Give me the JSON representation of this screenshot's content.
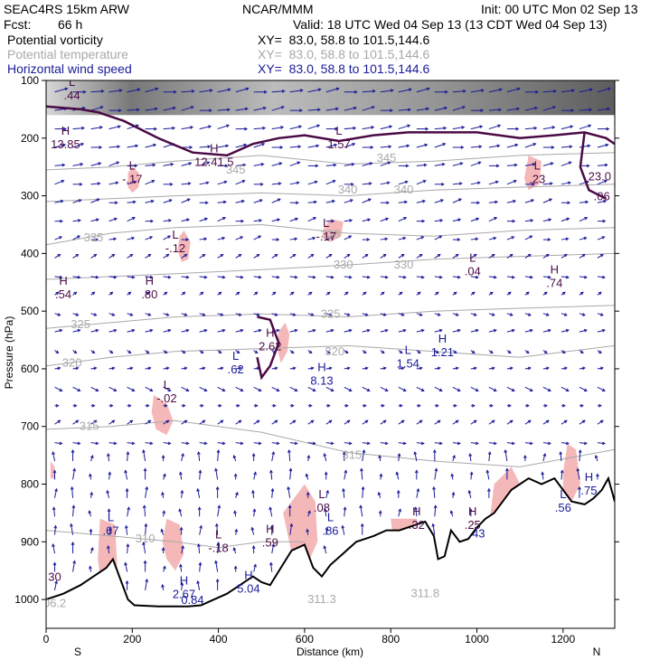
{
  "header": {
    "model": "SEAC4RS 15km ARW",
    "org": "NCAR/MMM",
    "init": "Init: 00 UTC Mon 02 Sep 13",
    "fcst_label": "Fcst:",
    "fcst_value": "66 h",
    "valid": "Valid: 18 UTC Wed 04 Sep 13 (13 CDT Wed 04 Sep 13)",
    "fields": [
      {
        "name": "Potential vorticity",
        "xy": "XY=  83.0, 58.8 to 101.5,144.6"
      },
      {
        "name": "Potential temperature",
        "xy": "XY=  83.0, 58.8 to 101.5,144.6"
      },
      {
        "name": "Horizontal wind speed",
        "xy": "XY=  83.0, 58.8 to 101.5,144.6"
      }
    ]
  },
  "colors": {
    "vorticity": "#4b0a46",
    "temperature": "#a9a9a9",
    "wind": "#1a1a9a",
    "pv_fill": "#f5b8b8",
    "terrain": "#000000"
  },
  "chart_data": {
    "type": "cross-section",
    "xlabel": "Distance (km)",
    "ylabel": "Pressure (hPa)",
    "xlim": [
      0,
      1320
    ],
    "ylim": [
      1050,
      100
    ],
    "x_ticks": [
      0,
      200,
      400,
      600,
      800,
      1000,
      1200
    ],
    "y_ticks": [
      100,
      200,
      300,
      400,
      500,
      600,
      700,
      800,
      900,
      1000
    ],
    "x_end_labels": {
      "left": "S",
      "right": "N"
    },
    "terrain": [
      [
        0,
        1000
      ],
      [
        40,
        990
      ],
      [
        80,
        975
      ],
      [
        110,
        960
      ],
      [
        140,
        945
      ],
      [
        155,
        930
      ],
      [
        170,
        960
      ],
      [
        190,
        1000
      ],
      [
        205,
        1010
      ],
      [
        260,
        1012
      ],
      [
        300,
        1012
      ],
      [
        330,
        1012
      ],
      [
        360,
        1010
      ],
      [
        390,
        1000
      ],
      [
        420,
        990
      ],
      [
        450,
        975
      ],
      [
        480,
        960
      ],
      [
        500,
        970
      ],
      [
        520,
        975
      ],
      [
        545,
        945
      ],
      [
        570,
        915
      ],
      [
        600,
        905
      ],
      [
        620,
        945
      ],
      [
        640,
        960
      ],
      [
        660,
        940
      ],
      [
        690,
        920
      ],
      [
        720,
        900
      ],
      [
        760,
        890
      ],
      [
        790,
        880
      ],
      [
        820,
        880
      ],
      [
        860,
        870
      ],
      [
        880,
        865
      ],
      [
        900,
        890
      ],
      [
        910,
        930
      ],
      [
        925,
        925
      ],
      [
        940,
        880
      ],
      [
        960,
        900
      ],
      [
        980,
        895
      ],
      [
        1000,
        875
      ],
      [
        1020,
        860
      ],
      [
        1040,
        850
      ],
      [
        1060,
        830
      ],
      [
        1080,
        810
      ],
      [
        1100,
        800
      ],
      [
        1120,
        790
      ],
      [
        1150,
        800
      ],
      [
        1180,
        790
      ],
      [
        1200,
        810
      ],
      [
        1220,
        830
      ],
      [
        1250,
        835
      ],
      [
        1270,
        825
      ],
      [
        1290,
        810
      ],
      [
        1305,
        790
      ],
      [
        1320,
        830
      ]
    ],
    "theta_contours": [
      {
        "label": "345",
        "points": [
          [
            0,
            255
          ],
          [
            150,
            250
          ],
          [
            300,
            240
          ],
          [
            500,
            230
          ],
          [
            700,
            245
          ],
          [
            900,
            240
          ],
          [
            1100,
            230
          ],
          [
            1320,
            225
          ]
        ]
      },
      {
        "label": "340",
        "points": [
          [
            0,
            310
          ],
          [
            150,
            305
          ],
          [
            300,
            300
          ],
          [
            500,
            295
          ],
          [
            700,
            300
          ],
          [
            900,
            290
          ],
          [
            1100,
            285
          ],
          [
            1320,
            280
          ]
        ]
      },
      {
        "label": "335",
        "points": [
          [
            0,
            385
          ],
          [
            150,
            365
          ],
          [
            300,
            355
          ],
          [
            500,
            350
          ],
          [
            700,
            365
          ],
          [
            900,
            370
          ],
          [
            1100,
            360
          ],
          [
            1320,
            355
          ]
        ]
      },
      {
        "label": "330",
        "points": [
          [
            0,
            445
          ],
          [
            150,
            440
          ],
          [
            300,
            435
          ],
          [
            500,
            428
          ],
          [
            700,
            420
          ],
          [
            900,
            410
          ],
          [
            1100,
            405
          ],
          [
            1320,
            400
          ]
        ]
      },
      {
        "label": "325",
        "points": [
          [
            0,
            530
          ],
          [
            150,
            520
          ],
          [
            300,
            510
          ],
          [
            500,
            505
          ],
          [
            700,
            510
          ],
          [
            900,
            500
          ],
          [
            1100,
            495
          ],
          [
            1320,
            490
          ]
        ]
      },
      {
        "label": "320",
        "points": [
          [
            0,
            595
          ],
          [
            150,
            580
          ],
          [
            300,
            570
          ],
          [
            500,
            565
          ],
          [
            700,
            560
          ],
          [
            900,
            570
          ],
          [
            1100,
            580
          ],
          [
            1320,
            560
          ]
        ]
      },
      {
        "label": "315",
        "points": [
          [
            0,
            705
          ],
          [
            150,
            700
          ],
          [
            300,
            690
          ],
          [
            500,
            710
          ],
          [
            700,
            745
          ],
          [
            900,
            760
          ],
          [
            1100,
            770
          ],
          [
            1320,
            740
          ]
        ]
      },
      {
        "label": "310",
        "points": [
          [
            0,
            880
          ],
          [
            150,
            890
          ],
          [
            300,
            900
          ],
          [
            400,
            910
          ],
          [
            500,
            900
          ],
          [
            600,
            900
          ]
        ]
      }
    ],
    "theta_labels": [
      {
        "text": "345",
        "x": 440,
        "y": 255
      },
      {
        "text": "345",
        "x": 790,
        "y": 235
      },
      {
        "text": "340",
        "x": 700,
        "y": 290
      },
      {
        "text": "340",
        "x": 830,
        "y": 290
      },
      {
        "text": "335",
        "x": 110,
        "y": 373
      },
      {
        "text": "335",
        "x": 660,
        "y": 367
      },
      {
        "text": "330",
        "x": 690,
        "y": 420
      },
      {
        "text": "330",
        "x": 830,
        "y": 420
      },
      {
        "text": "325",
        "x": 80,
        "y": 523
      },
      {
        "text": "325",
        "x": 660,
        "y": 505
      },
      {
        "text": "320",
        "x": 60,
        "y": 590
      },
      {
        "text": "320",
        "x": 670,
        "y": 570
      },
      {
        "text": "315",
        "x": 100,
        "y": 700
      },
      {
        "text": "315",
        "x": 710,
        "y": 750
      },
      {
        "text": "310",
        "x": 230,
        "y": 895
      },
      {
        "text": "311.8",
        "x": 880,
        "y": 990
      },
      {
        "text": "311.3",
        "x": 640,
        "y": 1000
      }
    ],
    "extrema_labels": [
      {
        "kind": "H",
        "value": "13.85",
        "x": 45,
        "y": 210,
        "color": "vorticity"
      },
      {
        "kind": "L",
        "value": ".44",
        "x": 60,
        "y": 125,
        "color": "vorticity"
      },
      {
        "kind": "H",
        "value": "12.41.5",
        "x": 390,
        "y": 240,
        "color": "vorticity"
      },
      {
        "kind": "L",
        "value": "1.57",
        "x": 680,
        "y": 210,
        "color": "vorticity"
      },
      {
        "kind": "L",
        "value": ".23",
        "x": 1140,
        "y": 270,
        "color": "vorticity"
      },
      {
        "kind": "",
        "value": "23.0",
        "x": 1285,
        "y": 265,
        "color": "vorticity"
      },
      {
        "kind": "",
        "value": ".06",
        "x": 1290,
        "y": 300,
        "color": "vorticity"
      },
      {
        "kind": "L",
        "value": "-.17",
        "x": 200,
        "y": 270,
        "color": "vorticity"
      },
      {
        "kind": "L",
        "value": "-.12",
        "x": 300,
        "y": 390,
        "color": "vorticity"
      },
      {
        "kind": "L",
        "value": "-.17",
        "x": 650,
        "y": 370,
        "color": "vorticity"
      },
      {
        "kind": "L",
        "value": ".04",
        "x": 990,
        "y": 430,
        "color": "vorticity"
      },
      {
        "kind": "H",
        "value": ".54",
        "x": 40,
        "y": 470,
        "color": "vorticity"
      },
      {
        "kind": "H",
        "value": ".80",
        "x": 240,
        "y": 470,
        "color": "vorticity"
      },
      {
        "kind": "H",
        "value": ".74",
        "x": 1180,
        "y": 450,
        "color": "vorticity"
      },
      {
        "kind": "H",
        "value": "2.62",
        "x": 520,
        "y": 560,
        "color": "vorticity"
      },
      {
        "kind": "L",
        "value": ".62",
        "x": 440,
        "y": 600,
        "color": "wind"
      },
      {
        "kind": "H",
        "value": "8.13",
        "x": 640,
        "y": 620,
        "color": "wind"
      },
      {
        "kind": "L",
        "value": "1.54",
        "x": 840,
        "y": 590,
        "color": "wind"
      },
      {
        "kind": "H",
        "value": "1.21",
        "x": 920,
        "y": 570,
        "color": "wind"
      },
      {
        "kind": "L",
        "value": "-.02",
        "x": 280,
        "y": 650,
        "color": "vorticity"
      },
      {
        "kind": "L",
        "value": ".08",
        "x": 640,
        "y": 840,
        "color": "vorticity"
      },
      {
        "kind": "L",
        "value": ".86",
        "x": 660,
        "y": 880,
        "color": "wind"
      },
      {
        "kind": "H",
        "value": ".32",
        "x": 860,
        "y": 870,
        "color": "vorticity"
      },
      {
        "kind": "H",
        "value": ".25",
        "x": 990,
        "y": 870,
        "color": "vorticity"
      },
      {
        "kind": "",
        "value": ".43",
        "x": 1000,
        "y": 885,
        "color": "wind"
      },
      {
        "kind": "L",
        "value": ".56",
        "x": 1200,
        "y": 840,
        "color": "wind"
      },
      {
        "kind": "H",
        "value": ".75",
        "x": 1260,
        "y": 810,
        "color": "wind"
      },
      {
        "kind": "L",
        "value": ".67",
        "x": 150,
        "y": 880,
        "color": "wind"
      },
      {
        "kind": "L",
        "value": "-.18",
        "x": 400,
        "y": 910,
        "color": "vorticity"
      },
      {
        "kind": "H",
        "value": ".59",
        "x": 520,
        "y": 900,
        "color": "vorticity"
      },
      {
        "kind": "H",
        "value": "5.04",
        "x": 470,
        "y": 980,
        "color": "wind"
      },
      {
        "kind": "H",
        "value": "2.67",
        "x": 320,
        "y": 990,
        "color": "wind"
      },
      {
        "kind": "",
        "value": "0.84",
        "x": 340,
        "y": 1000,
        "color": "wind"
      },
      {
        "kind": "",
        "value": "30",
        "x": 20,
        "y": 960,
        "color": "vorticity"
      },
      {
        "kind": "",
        "value": "06.2",
        "x": 20,
        "y": 1005,
        "color": "temperature"
      }
    ],
    "pv_regions": [
      [
        [
          200,
          250
        ],
        [
          215,
          260
        ],
        [
          215,
          285
        ],
        [
          200,
          295
        ],
        [
          190,
          285
        ],
        [
          190,
          260
        ]
      ],
      [
        [
          320,
          360
        ],
        [
          335,
          380
        ],
        [
          330,
          410
        ],
        [
          315,
          415
        ],
        [
          305,
          395
        ],
        [
          310,
          370
        ]
      ],
      [
        [
          660,
          340
        ],
        [
          690,
          345
        ],
        [
          685,
          370
        ],
        [
          660,
          380
        ],
        [
          640,
          372
        ],
        [
          645,
          355
        ]
      ],
      [
        [
          1120,
          230
        ],
        [
          1150,
          240
        ],
        [
          1145,
          280
        ],
        [
          1120,
          290
        ],
        [
          1110,
          270
        ]
      ],
      [
        [
          250,
          645
        ],
        [
          280,
          660
        ],
        [
          295,
          690
        ],
        [
          280,
          715
        ],
        [
          255,
          705
        ],
        [
          245,
          675
        ]
      ],
      [
        [
          555,
          520
        ],
        [
          565,
          540
        ],
        [
          560,
          570
        ],
        [
          545,
          590
        ],
        [
          535,
          560
        ],
        [
          540,
          535
        ]
      ],
      [
        [
          125,
          860
        ],
        [
          160,
          870
        ],
        [
          165,
          940
        ],
        [
          150,
          1000
        ],
        [
          130,
          990
        ],
        [
          120,
          930
        ]
      ],
      [
        [
          550,
          850
        ],
        [
          600,
          800
        ],
        [
          625,
          830
        ],
        [
          630,
          900
        ],
        [
          600,
          950
        ],
        [
          570,
          920
        ]
      ],
      [
        [
          280,
          860
        ],
        [
          310,
          870
        ],
        [
          320,
          920
        ],
        [
          300,
          950
        ],
        [
          280,
          930
        ],
        [
          270,
          900
        ]
      ],
      [
        [
          1040,
          800
        ],
        [
          1080,
          770
        ],
        [
          1100,
          800
        ],
        [
          1090,
          860
        ],
        [
          1060,
          870
        ],
        [
          1030,
          860
        ]
      ],
      [
        [
          1210,
          730
        ],
        [
          1230,
          740
        ],
        [
          1240,
          800
        ],
        [
          1220,
          830
        ],
        [
          1200,
          820
        ],
        [
          1200,
          780
        ]
      ],
      [
        [
          800,
          860
        ],
        [
          860,
          860
        ],
        [
          870,
          900
        ],
        [
          850,
          930
        ],
        [
          810,
          920
        ]
      ],
      [
        [
          10,
          760
        ],
        [
          20,
          770
        ],
        [
          20,
          790
        ],
        [
          10,
          790
        ]
      ]
    ],
    "pv_contours": [
      [
        [
          0,
          145
        ],
        [
          80,
          150
        ],
        [
          120,
          155
        ],
        [
          180,
          170
        ],
        [
          260,
          200
        ],
        [
          340,
          225
        ],
        [
          420,
          230
        ],
        [
          480,
          210
        ],
        [
          540,
          200
        ],
        [
          600,
          195
        ],
        [
          680,
          205
        ],
        [
          760,
          195
        ],
        [
          840,
          190
        ],
        [
          920,
          190
        ],
        [
          1000,
          190
        ],
        [
          1100,
          200
        ],
        [
          1180,
          195
        ],
        [
          1250,
          190
        ],
        [
          1300,
          200
        ],
        [
          1320,
          210
        ]
      ],
      [
        [
          490,
          510
        ],
        [
          520,
          515
        ],
        [
          540,
          555
        ],
        [
          520,
          595
        ],
        [
          500,
          615
        ],
        [
          490,
          580
        ]
      ],
      [
        [
          1250,
          190
        ],
        [
          1240,
          250
        ],
        [
          1260,
          290
        ],
        [
          1300,
          305
        ]
      ]
    ],
    "wind_upper_shade_to_hPa": 160
  }
}
